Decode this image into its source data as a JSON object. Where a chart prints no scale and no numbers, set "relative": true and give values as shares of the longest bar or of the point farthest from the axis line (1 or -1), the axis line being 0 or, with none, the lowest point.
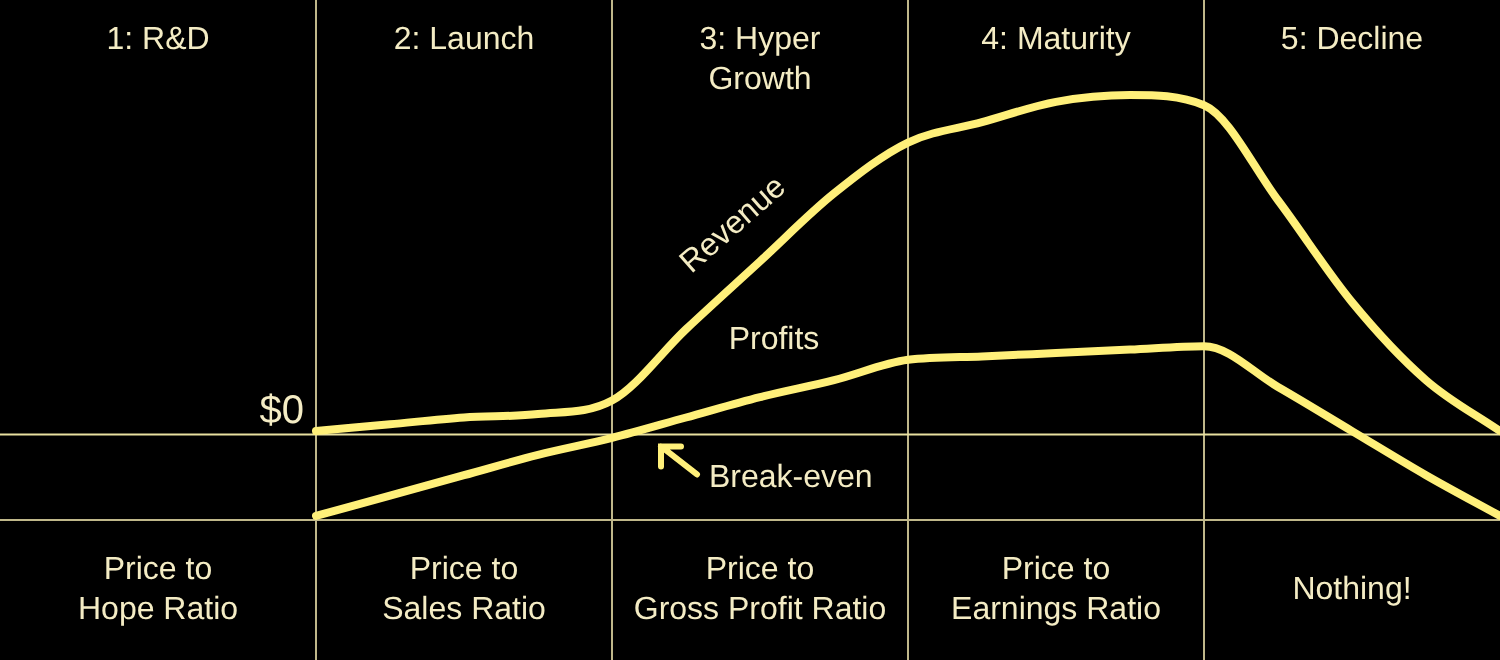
{
  "chart_data": {
    "type": "line",
    "relative": true,
    "categories": [
      null,
      null,
      null,
      null,
      null,
      null,
      null,
      null,
      null,
      null,
      null,
      null,
      null,
      null,
      null,
      null,
      null
    ],
    "series": [
      {
        "name": "Revenue",
        "color": "#fff07a",
        "values": [
          0.01,
          0.03,
          0.05,
          0.06,
          0.1,
          0.31,
          0.51,
          0.71,
          0.86,
          0.92,
          0.98,
          1.0,
          0.97,
          0.69,
          0.39,
          0.16,
          0.01
        ]
      },
      {
        "name": "Profits",
        "color": "#fff07a",
        "values": [
          -0.24,
          -0.18,
          -0.12,
          -0.06,
          -0.01,
          0.05,
          0.11,
          0.16,
          0.22,
          0.23,
          0.24,
          0.25,
          0.26,
          0.14,
          0.01,
          -0.12,
          -0.24
        ]
      }
    ],
    "ref_lines": [
      {
        "axis": "y",
        "value": 0,
        "label": "$0",
        "color": "#e8e0a0"
      }
    ],
    "annotations": [
      "1: R&D",
      "2: Launch",
      "3: Hyper\nGrowth",
      "4: Maturity",
      "5: Decline",
      "Price to\nHope Ratio",
      "Price to\nSales Ratio",
      "Price to\nGross Profit Ratio",
      "Price to\nEarnings Ratio",
      "Nothing!",
      "Break-even"
    ],
    "marker": "none",
    "line_style": "solid",
    "grid": "x",
    "legend": false
  }
}
